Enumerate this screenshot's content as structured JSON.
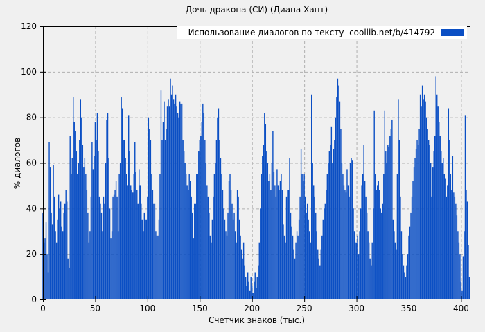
{
  "title": "Дочь дракона (СИ) (Диана Хант)",
  "legend": {
    "label": "Использование диалогов по тексту  coollib.net/b/414792",
    "position": "top-right",
    "swatch_color": "#0b4fc4"
  },
  "colors": {
    "background": "#f0f0f0",
    "bar": "#0b4fc4",
    "grid": "#b0b0b0",
    "axis": "#000000",
    "legend_background": "#ffffff",
    "text": "#000000"
  },
  "chart_data": {
    "type": "bar",
    "style": "impulses",
    "title": "Дочь дракона (СИ) (Диана Хант)",
    "xlabel": "Счетчик знаков (тыс.)",
    "ylabel": "% диалогов",
    "xlim": [
      0,
      409
    ],
    "ylim": [
      0,
      120
    ],
    "xticks": [
      0,
      50,
      100,
      150,
      200,
      250,
      300,
      350,
      400
    ],
    "yticks": [
      0,
      20,
      40,
      60,
      80,
      100,
      120
    ],
    "grid": true,
    "legend_position": "top-right",
    "x_start": 0,
    "x_step": 1,
    "series": [
      {
        "name": "Использование диалогов по тексту  coollib.net/b/414792",
        "color": "#0b4fc4",
        "values": [
          38,
          25,
          27,
          34,
          20,
          12,
          69,
          58,
          38,
          33,
          59,
          45,
          30,
          25,
          35,
          46,
          40,
          43,
          32,
          30,
          38,
          42,
          48,
          43,
          18,
          14,
          72,
          55,
          62,
          89,
          78,
          74,
          65,
          55,
          60,
          70,
          88,
          80,
          68,
          58,
          62,
          55,
          48,
          38,
          25,
          30,
          45,
          69,
          57,
          63,
          78,
          70,
          82,
          65,
          45,
          42,
          38,
          30,
          45,
          42,
          60,
          79,
          82,
          62,
          40,
          27,
          30,
          45,
          46,
          48,
          52,
          45,
          30,
          55,
          60,
          89,
          84,
          70,
          70,
          62,
          55,
          50,
          81,
          65,
          50,
          48,
          47,
          55,
          69,
          56,
          48,
          42,
          57,
          50,
          42,
          35,
          30,
          38,
          35,
          35,
          45,
          80,
          75,
          70,
          55,
          48,
          42,
          42,
          30,
          28,
          28,
          35,
          55,
          92,
          70,
          78,
          87,
          70,
          75,
          85,
          88,
          85,
          97,
          90,
          94,
          88,
          86,
          90,
          85,
          82,
          80,
          87,
          86,
          86,
          70,
          65,
          60,
          55,
          50,
          48,
          55,
          52,
          45,
          38,
          27,
          42,
          42,
          55,
          55,
          65,
          70,
          72,
          78,
          86,
          82,
          70,
          60,
          50,
          45,
          38,
          28,
          25,
          35,
          45,
          55,
          60,
          70,
          80,
          84,
          70,
          62,
          55,
          48,
          40,
          35,
          30,
          28,
          38,
          52,
          55,
          48,
          42,
          35,
          38,
          30,
          25,
          48,
          45,
          35,
          28,
          22,
          18,
          25,
          15,
          10,
          6,
          12,
          8,
          4,
          10,
          6,
          3,
          8,
          12,
          5,
          10,
          15,
          25,
          40,
          55,
          63,
          68,
          82,
          77,
          65,
          60,
          52,
          55,
          48,
          60,
          74,
          56,
          50,
          45,
          57,
          50,
          48,
          52,
          55,
          48,
          33,
          28,
          25,
          45,
          48,
          48,
          62,
          38,
          32,
          28,
          22,
          18,
          25,
          30,
          28,
          35,
          45,
          66,
          55,
          52,
          55,
          45,
          38,
          42,
          35,
          30,
          25,
          90,
          60,
          50,
          45,
          38,
          30,
          22,
          18,
          15,
          22,
          28,
          35,
          40,
          42,
          48,
          55,
          60,
          65,
          68,
          76,
          60,
          66,
          70,
          80,
          89,
          97,
          94,
          87,
          75,
          60,
          55,
          50,
          48,
          47,
          57,
          50,
          45,
          60,
          62,
          61,
          40,
          30,
          25,
          25,
          28,
          20,
          30,
          40,
          50,
          55,
          68,
          52,
          45,
          38,
          30,
          25,
          18,
          15,
          25,
          40,
          83,
          55,
          48,
          50,
          52,
          48,
          40,
          38,
          42,
          55,
          83,
          65,
          60,
          68,
          67,
          72,
          75,
          79,
          35,
          30,
          25,
          22,
          55,
          88,
          70,
          45,
          30,
          20,
          15,
          12,
          10,
          15,
          20,
          28,
          32,
          38,
          45,
          52,
          58,
          62,
          66,
          70,
          68,
          75,
          90,
          85,
          94,
          88,
          90,
          87,
          80,
          75,
          70,
          68,
          60,
          45,
          58,
          65,
          72,
          98,
          90,
          85,
          78,
          72,
          65,
          60,
          62,
          55,
          53,
          45,
          50,
          84,
          70,
          55,
          48,
          63,
          47,
          45,
          42,
          37,
          30,
          25,
          20,
          8,
          4,
          19,
          30,
          81,
          48,
          43,
          24,
          10
        ]
      }
    ]
  }
}
